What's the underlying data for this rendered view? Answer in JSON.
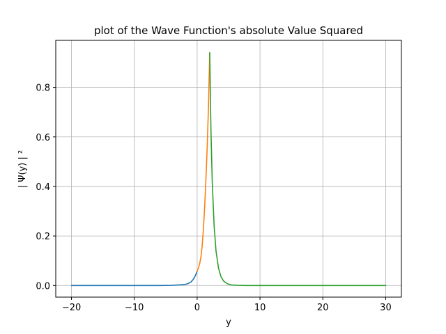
{
  "chart_data": {
    "type": "line",
    "title": "plot of the Wave Function's absolute Value Squared",
    "xlabel": "y",
    "ylabel": "| Ψ(y) | ²",
    "xlim": [
      -22.5,
      32.5
    ],
    "ylim": [
      -0.047,
      0.99
    ],
    "x_ticks": [
      -20,
      -10,
      0,
      10,
      20,
      30
    ],
    "x_tick_labels": [
      "−20",
      "−10",
      "0",
      "10",
      "20",
      "30"
    ],
    "y_ticks": [
      0.0,
      0.2,
      0.4,
      0.6,
      0.8
    ],
    "y_tick_labels": [
      "0.0",
      "0.2",
      "0.4",
      "0.6",
      "0.8"
    ],
    "grid": true,
    "legend": "none",
    "series": [
      {
        "color": "#1f77b4",
        "x": [
          -20,
          -15,
          -10,
          -6,
          -4,
          -3,
          -2,
          -1.5,
          -1,
          -0.7,
          -0.4,
          -0.2,
          0
        ],
        "y": [
          0.0,
          0.0,
          0.0,
          0.0,
          0.0005,
          0.002,
          0.004,
          0.007,
          0.014,
          0.022,
          0.034,
          0.045,
          0.058
        ]
      },
      {
        "color": "#ff7f0e",
        "x": [
          0,
          0.2,
          0.4,
          0.6,
          0.8,
          1.0,
          1.2,
          1.4,
          1.6,
          1.8,
          2.0
        ],
        "y": [
          0.058,
          0.07,
          0.088,
          0.115,
          0.16,
          0.23,
          0.32,
          0.43,
          0.56,
          0.72,
          0.94
        ]
      },
      {
        "color": "#2ca02c",
        "x": [
          2.0,
          2.2,
          2.4,
          2.7,
          3.0,
          3.4,
          3.8,
          4.2,
          4.8,
          5.5,
          6.5,
          8,
          10,
          15,
          20,
          25,
          30
        ],
        "y": [
          0.94,
          0.62,
          0.42,
          0.24,
          0.14,
          0.07,
          0.035,
          0.018,
          0.007,
          0.002,
          0.0005,
          0.0,
          0.0,
          0.0,
          0.0,
          0.0,
          0.0
        ]
      }
    ]
  }
}
